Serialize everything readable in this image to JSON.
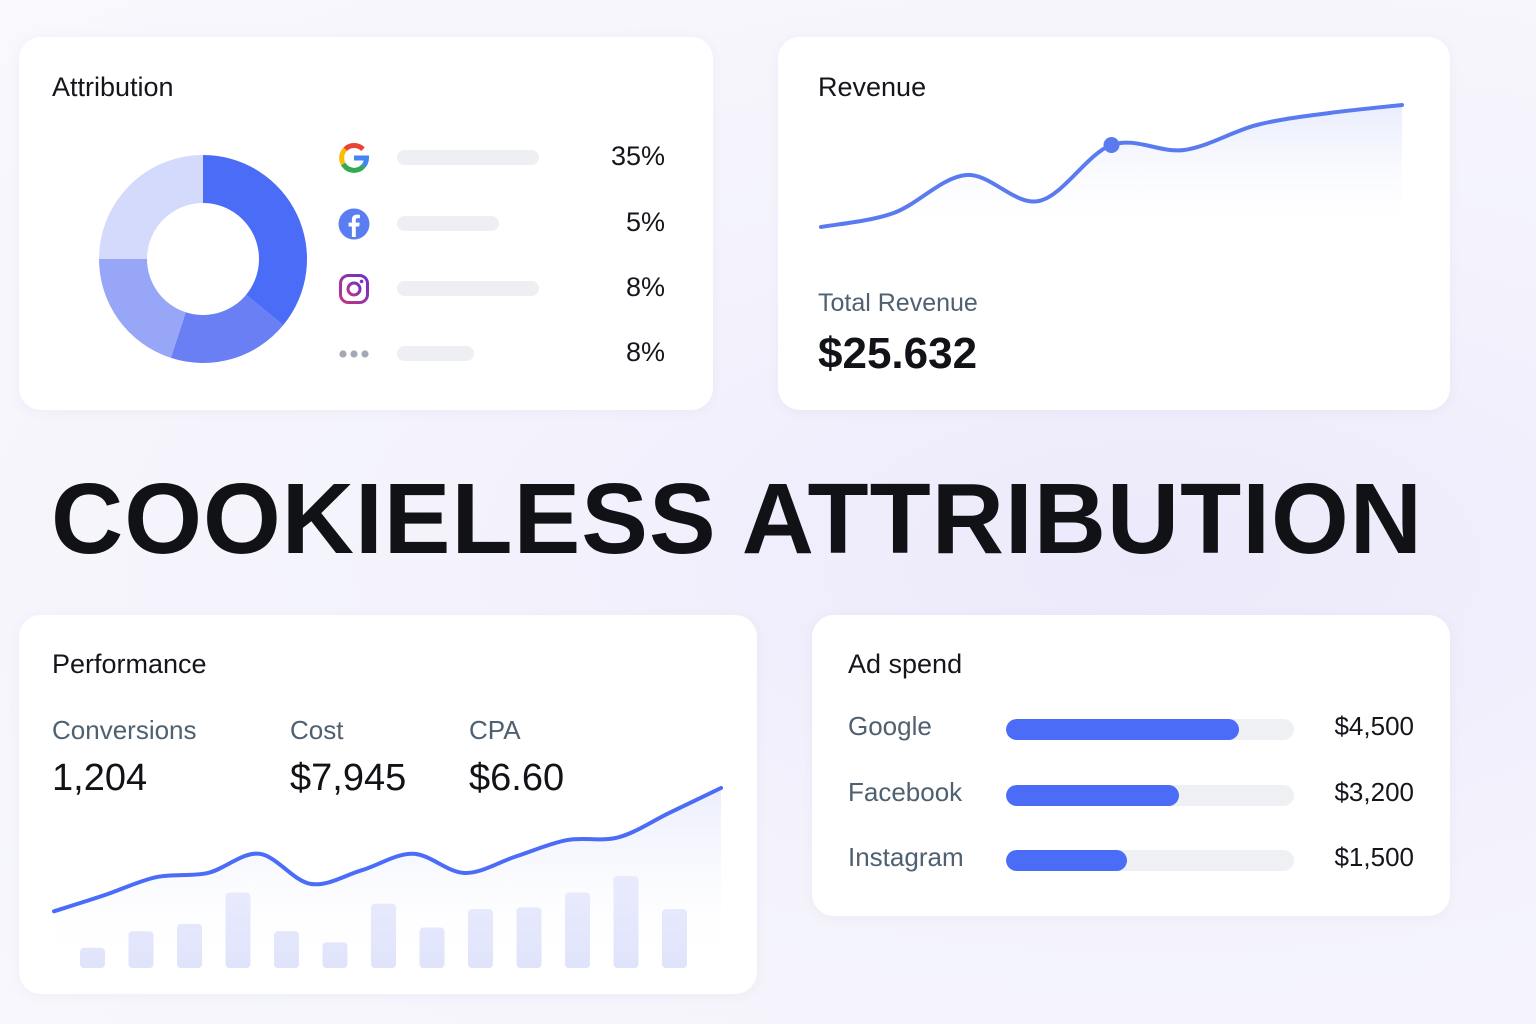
{
  "colors": {
    "accent": "#4a6cf7",
    "donut": [
      "#4a6cf7",
      "#6b7ff4",
      "#98a6f8",
      "#d4dafb"
    ],
    "bar_placeholder": "#eeeff3",
    "track": "#eff0f4",
    "perf_bars": "#dfe3fb"
  },
  "attribution": {
    "title": "Attribution",
    "donut_fractions": [
      0.36,
      0.19,
      0.2,
      0.25
    ],
    "rows": [
      {
        "icon": "google-icon",
        "pct": "35%",
        "bar_fraction": 0.5
      },
      {
        "icon": "facebook-icon",
        "pct": "5%",
        "bar_fraction": 0.36
      },
      {
        "icon": "instagram-icon",
        "pct": "8%",
        "bar_fraction": 0.5
      },
      {
        "icon": "more-dots-icon",
        "pct": "8%",
        "bar_fraction": 0.27
      }
    ]
  },
  "revenue": {
    "title": "Revenue",
    "label": "Total Revenue",
    "value": "$25.632",
    "trend": [
      0.08,
      0.22,
      0.6,
      0.34,
      0.9,
      0.85,
      1.1,
      1.22,
      1.3
    ],
    "marker_index": 4
  },
  "headline": "COOKIELESS ATTRIBUTION",
  "performance": {
    "title": "Performance",
    "metrics": [
      {
        "label": "Conversions",
        "value": "1,204"
      },
      {
        "label": "Cost",
        "value": "$7,945"
      },
      {
        "label": "CPA",
        "value": "$6.60"
      }
    ],
    "bars": [
      0.22,
      0.4,
      0.48,
      0.82,
      0.4,
      0.28,
      0.7,
      0.44,
      0.64,
      0.66,
      0.82,
      1.0,
      0.64
    ],
    "line": [
      0.1,
      0.22,
      0.35,
      0.38,
      0.52,
      0.3,
      0.4,
      0.52,
      0.38,
      0.5,
      0.62,
      0.64,
      0.82,
      1.0
    ]
  },
  "ad_spend": {
    "title": "Ad spend",
    "rows": [
      {
        "name": "Google",
        "amount": "$4,500",
        "fraction": 0.81
      },
      {
        "name": "Facebook",
        "amount": "$3,200",
        "fraction": 0.6
      },
      {
        "name": "Instagram",
        "amount": "$1,500",
        "fraction": 0.42
      }
    ]
  }
}
